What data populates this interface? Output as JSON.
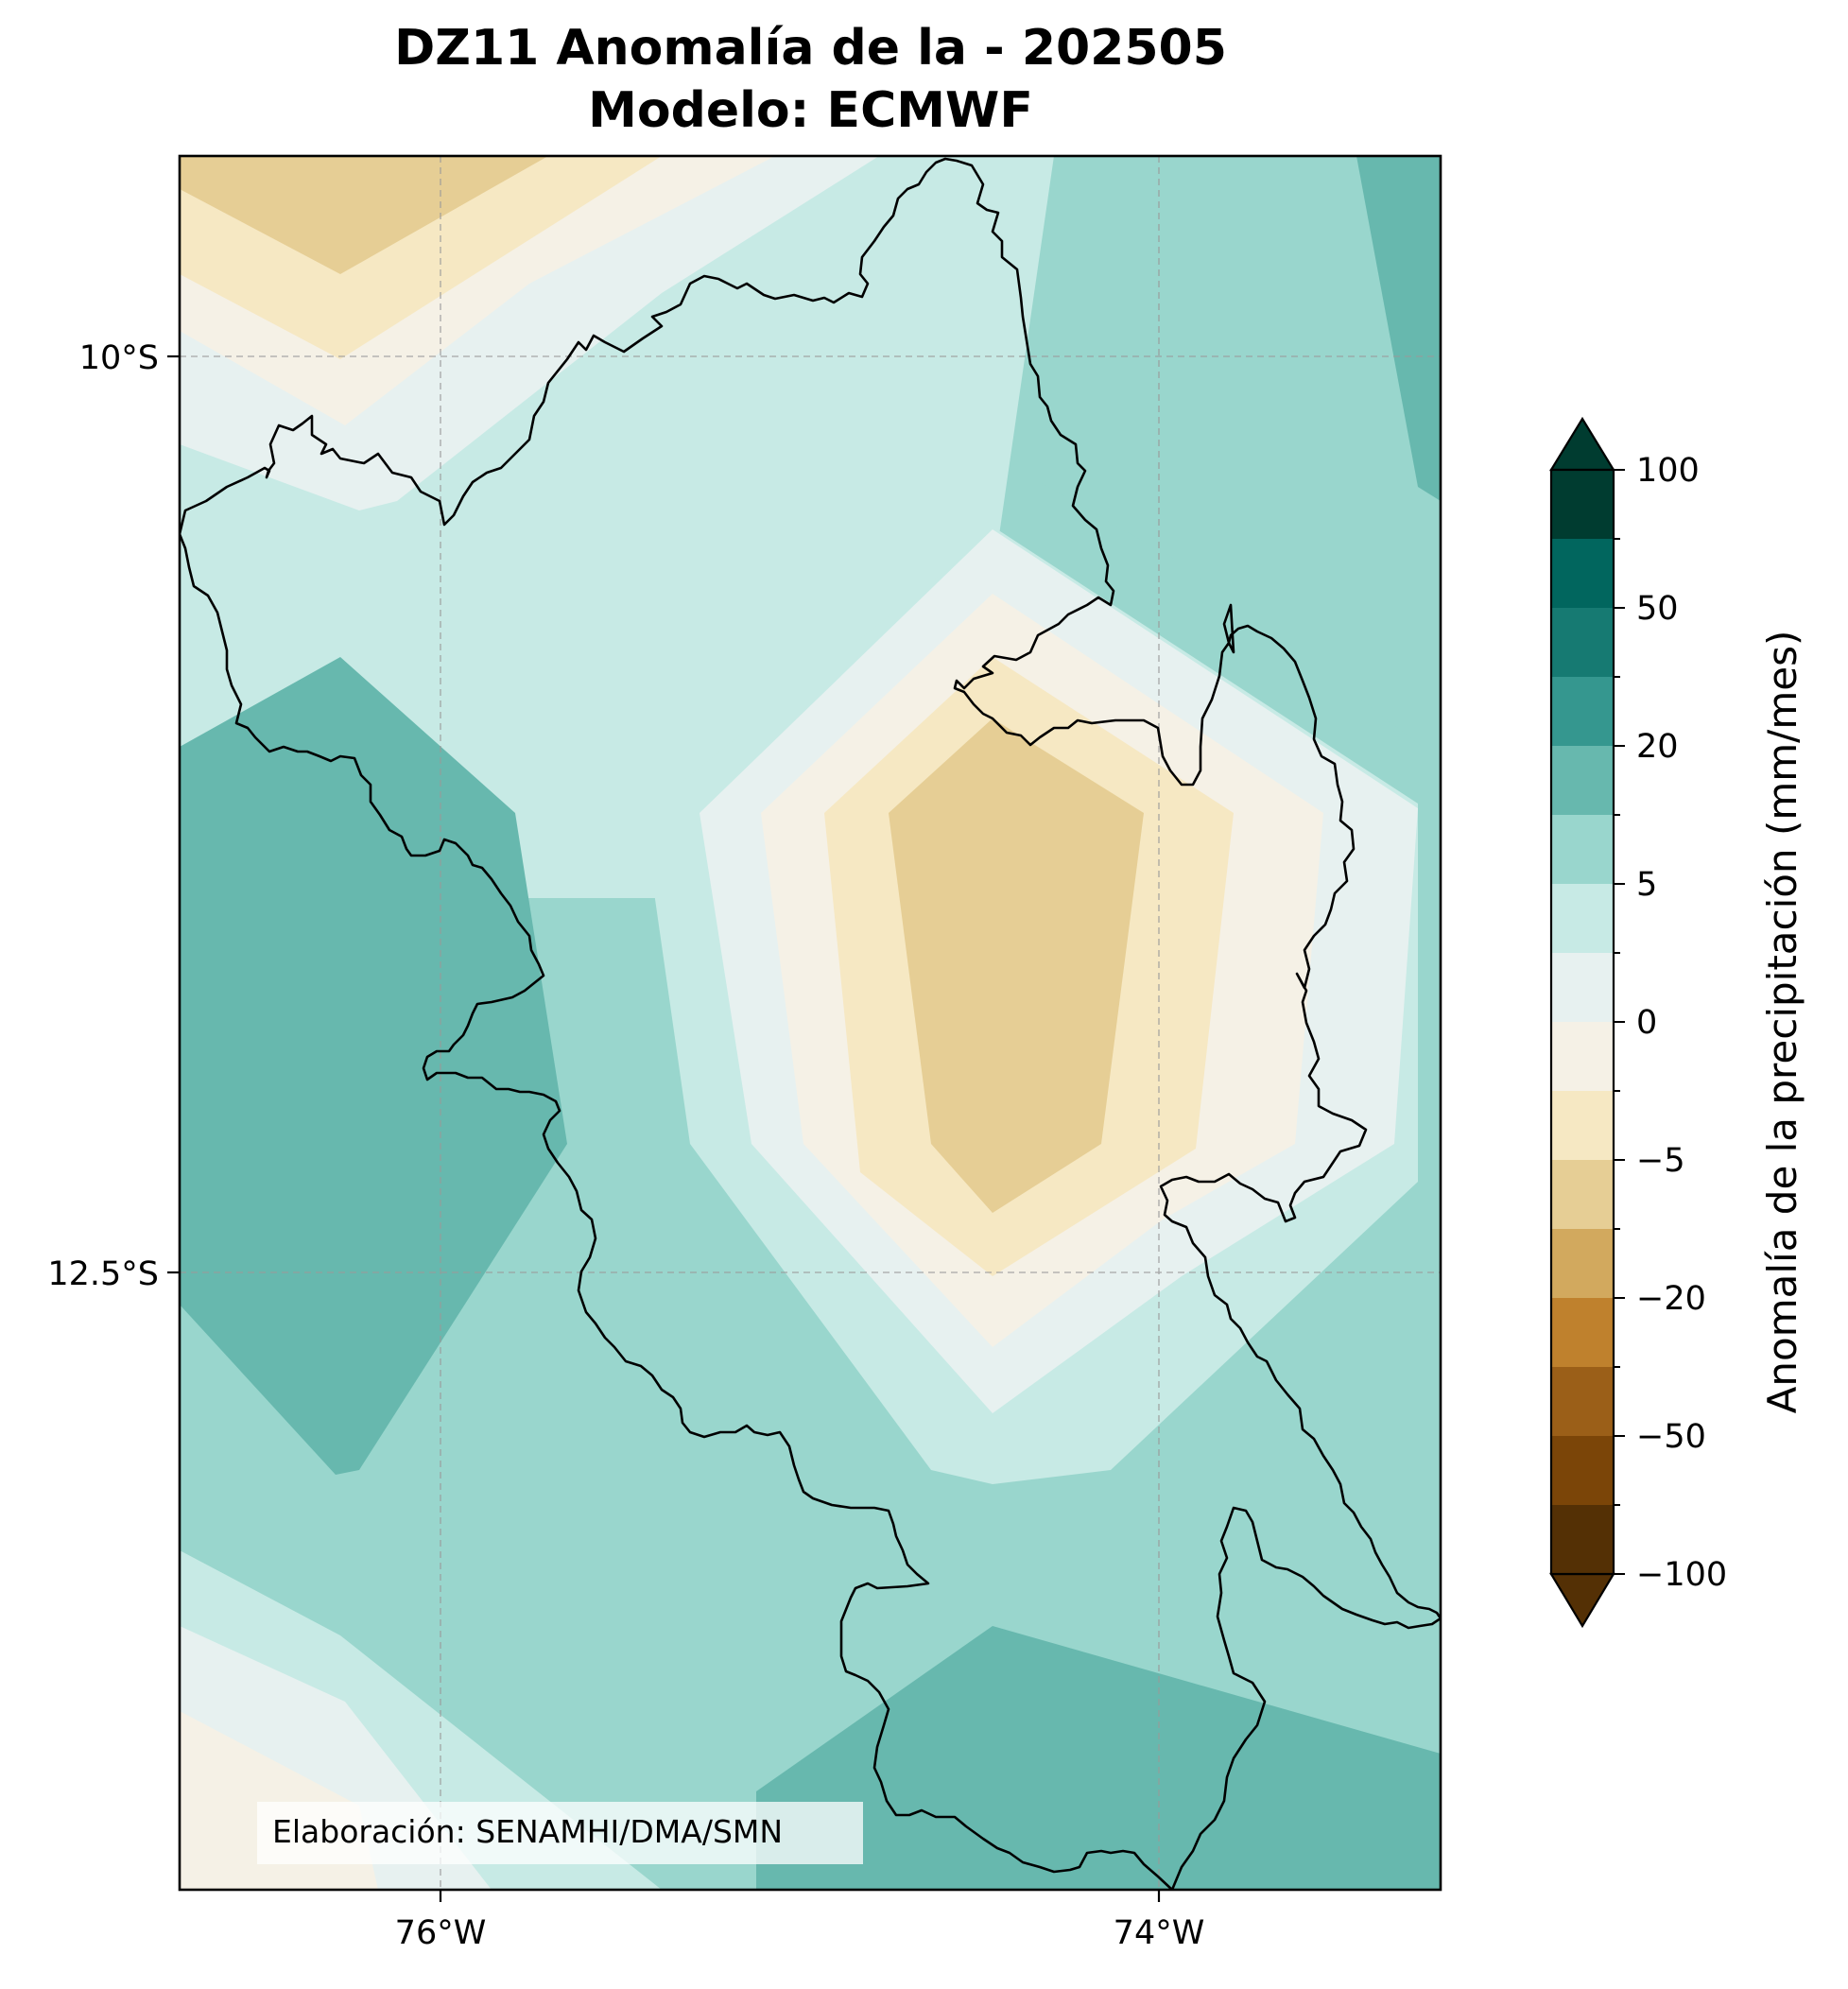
{
  "title": "DZ11 Anomalía de la - 202505",
  "subtitle": "Modelo: ECMWF",
  "credit": "Elaboración: SENAMHI/DMA/SMN",
  "map": {
    "lon_range": [
      -76.72,
      -73.22
    ],
    "lat_range": [
      -14.26,
      -9.45
    ],
    "x_ticks": [
      {
        "value": -76,
        "label": "76°W"
      },
      {
        "value": -74,
        "label": "74°W"
      }
    ],
    "y_ticks": [
      {
        "value": -10,
        "label": "10°S"
      },
      {
        "value": -12.5,
        "label": "12.5°S"
      }
    ],
    "grid": true
  },
  "colorbar": {
    "label": "Anomalía de la precipitación (mm/mes)",
    "tick_labels": [
      "100",
      "50",
      "20",
      "5",
      "0",
      "−5",
      "−20",
      "−50",
      "−100"
    ],
    "colors_top_to_bottom": [
      "#003c30",
      "#01665e",
      "#167a72",
      "#35978f",
      "#67b8ae",
      "#99d6cd",
      "#c7eae5",
      "#e7f1f0",
      "#f5f1e6",
      "#f6e8c3",
      "#e6ce95",
      "#d2a95e",
      "#bf812d",
      "#9b5f18",
      "#7b4508",
      "#543005"
    ],
    "extend": "both"
  },
  "palette": {
    "c_p4": "#67b8ae",
    "c_p3": "#99d6cd",
    "c_p2": "#c7eae5",
    "c_p1": "#e7f1f0",
    "c_n1": "#f5f1e6",
    "c_n2": "#f6e8c3",
    "c_n3": "#e6ce95"
  }
}
